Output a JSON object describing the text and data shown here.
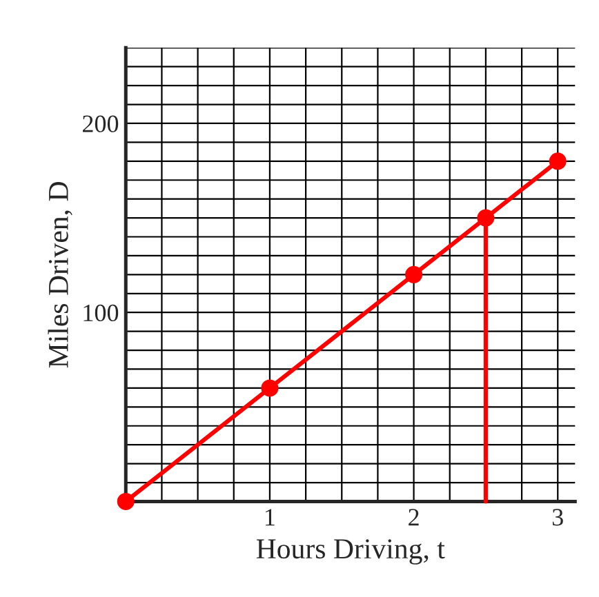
{
  "chart_data": {
    "type": "line",
    "xlabel": "Hours Driving, t",
    "ylabel": "Miles Driven, D",
    "xlim": [
      0,
      3.12
    ],
    "ylim": [
      0,
      240
    ],
    "xticks": [
      {
        "value": 0,
        "label": null
      },
      {
        "value": 0.25,
        "label": null
      },
      {
        "value": 0.5,
        "label": null
      },
      {
        "value": 0.75,
        "label": null
      },
      1,
      {
        "value": 1.25,
        "label": null
      },
      {
        "value": 1.5,
        "label": null
      },
      {
        "value": 1.75,
        "label": null
      },
      2,
      {
        "value": 2.25,
        "label": null
      },
      {
        "value": 2.5,
        "label": null
      },
      {
        "value": 2.75,
        "label": null
      },
      3
    ],
    "yticks": [
      {
        "value": 0,
        "label": null
      },
      {
        "value": 10,
        "label": null
      },
      {
        "value": 20,
        "label": null
      },
      {
        "value": 30,
        "label": null
      },
      {
        "value": 40,
        "label": null
      },
      {
        "value": 50,
        "label": null
      },
      {
        "value": 60,
        "label": null
      },
      {
        "value": 70,
        "label": null
      },
      {
        "value": 80,
        "label": null
      },
      {
        "value": 90,
        "label": null
      },
      100,
      {
        "value": 110,
        "label": null
      },
      {
        "value": 120,
        "label": null
      },
      {
        "value": 130,
        "label": null
      },
      {
        "value": 140,
        "label": null
      },
      {
        "value": 150,
        "label": null
      },
      {
        "value": 160,
        "label": null
      },
      {
        "value": 170,
        "label": null
      },
      {
        "value": 180,
        "label": null
      },
      {
        "value": 190,
        "label": null
      },
      200,
      {
        "value": 210,
        "label": null
      },
      {
        "value": 220,
        "label": null
      },
      {
        "value": 230,
        "label": null
      },
      {
        "value": 240,
        "label": null
      }
    ],
    "grid": true,
    "marker": "circle",
    "series": [
      {
        "color": "#ff0000",
        "x": [
          0,
          1,
          2,
          2.5,
          3
        ],
        "values": [
          0,
          60,
          120,
          150,
          180
        ]
      },
      {
        "color": "#ff0000",
        "x": [
          2.5,
          2.5
        ],
        "values": [
          150,
          0
        ],
        "marker": "none"
      }
    ]
  }
}
